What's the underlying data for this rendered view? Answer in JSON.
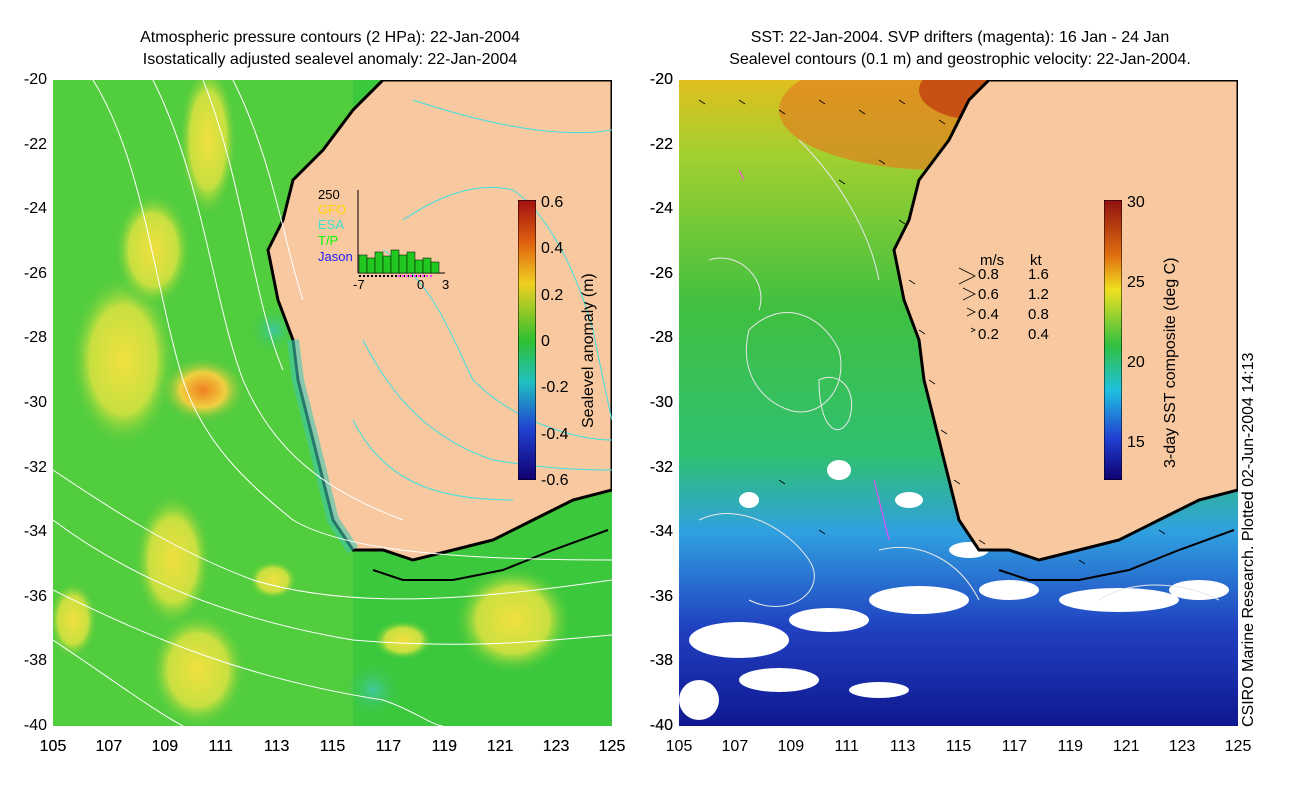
{
  "left_panel": {
    "title_line1": "Atmospheric pressure contours (2 HPa): 22-Jan-2004",
    "title_line2": "Isostatically adjusted sealevel anomaly: 22-Jan-2004",
    "y_ticks": [
      "-20",
      "-22",
      "-24",
      "-26",
      "-28",
      "-30",
      "-32",
      "-34",
      "-36",
      "-38",
      "-40"
    ],
    "x_ticks": [
      "105",
      "107",
      "109",
      "111",
      "113",
      "115",
      "117",
      "119",
      "121",
      "123",
      "125"
    ],
    "colorbar_label": "Sealevel anomaly (m)",
    "colorbar_ticks": [
      "0.6",
      "0.4",
      "0.2",
      "0",
      "-0.2",
      "-0.4",
      "-0.6"
    ],
    "inset": {
      "ymax": "250",
      "legend": [
        "GFO",
        "ESA",
        "T/P",
        "Jason"
      ],
      "legend_colors": [
        "#ffd700",
        "#40e0d0",
        "#00ff00",
        "#2020ff"
      ],
      "x_labels": [
        "-7",
        "0",
        "3"
      ]
    }
  },
  "right_panel": {
    "title_line1": "SST: 22-Jan-2004. SVP drifters (magenta): 16 Jan - 24 Jan",
    "title_line2": "Sealevel contours (0.1 m) and geostrophic velocity: 22-Jan-2004.",
    "y_ticks": [
      "-20",
      "-22",
      "-24",
      "-26",
      "-28",
      "-30",
      "-32",
      "-34",
      "-36",
      "-38",
      "-40"
    ],
    "x_ticks": [
      "105",
      "107",
      "109",
      "111",
      "113",
      "115",
      "117",
      "119",
      "121",
      "123",
      "125"
    ],
    "colorbar_label": "3-day SST composite (deg C)",
    "colorbar_ticks": [
      "30",
      "25",
      "20",
      "15"
    ],
    "velocity_legend": {
      "header_ms": "m/s",
      "header_kt": "kt",
      "rows": [
        [
          "0.8",
          "1.6"
        ],
        [
          "0.6",
          "1.2"
        ],
        [
          "0.4",
          "0.8"
        ],
        [
          "0.2",
          "0.4"
        ]
      ]
    }
  },
  "credit": "CSIRO Marine Research. Plotted 02-Jun-2004 14:13",
  "colors": {
    "land": "#f8c8a0",
    "sla_background": "#3cc83c",
    "coast": "#000000"
  }
}
